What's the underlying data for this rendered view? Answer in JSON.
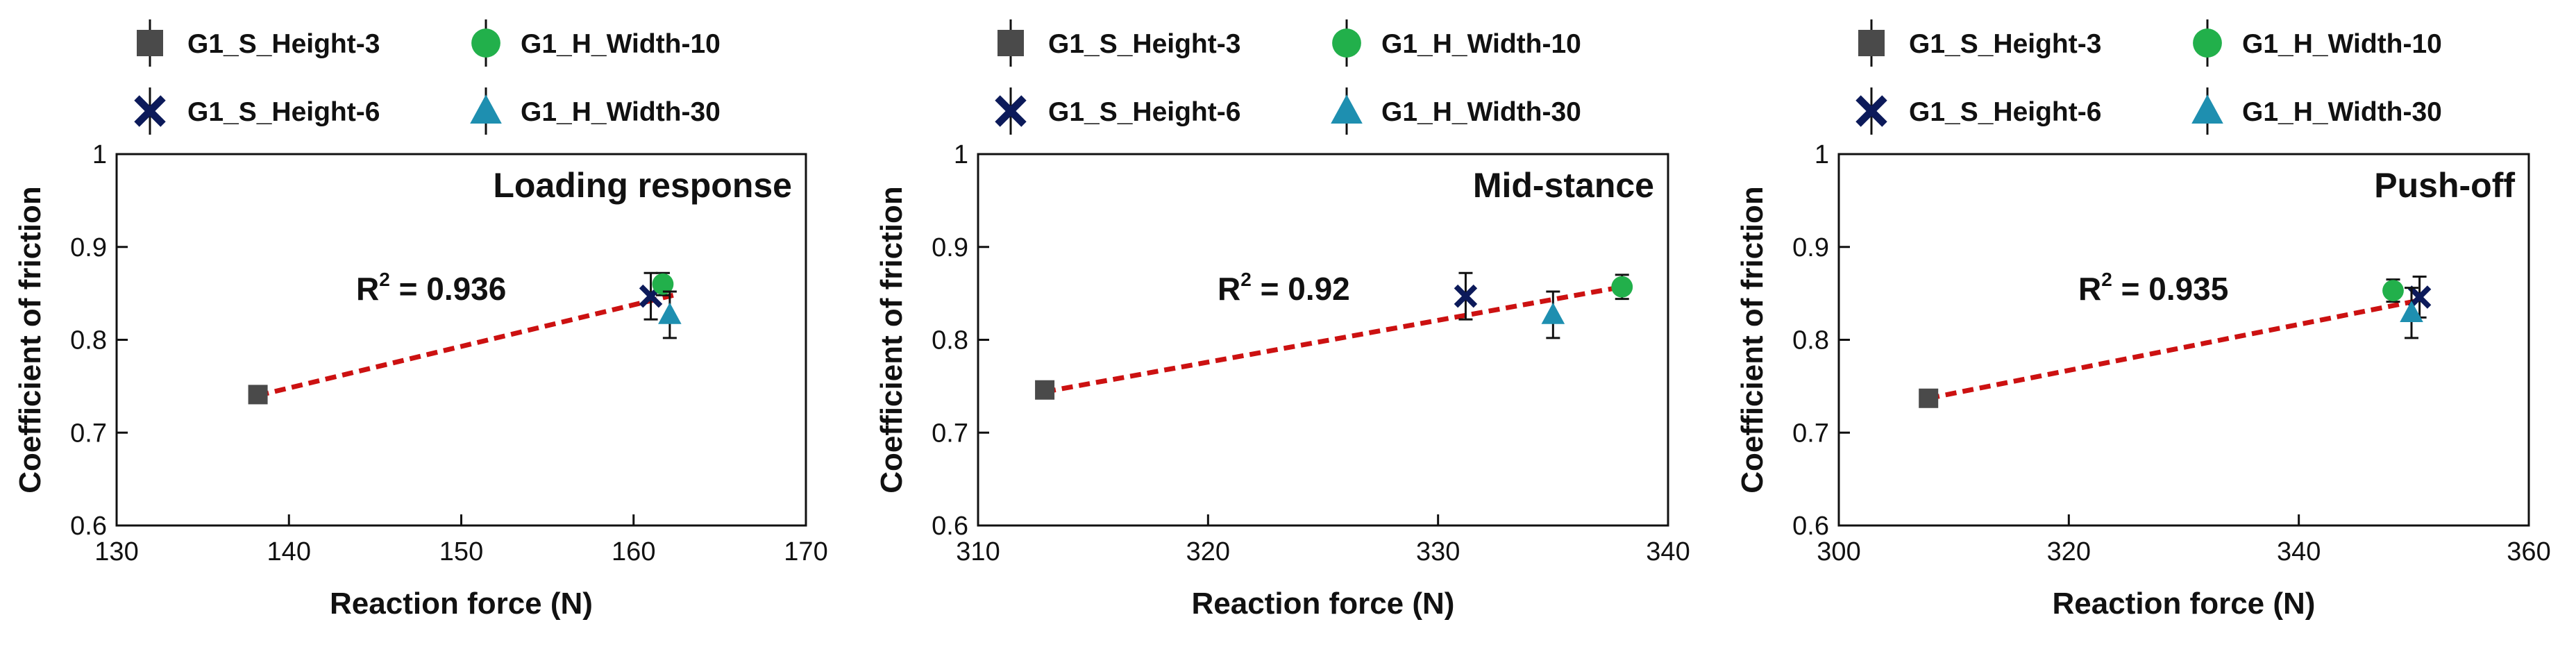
{
  "colors": {
    "G1_S_Height-3": "#4a4a4a",
    "G1_S_Height-6": "#0c1a5a",
    "G1_H_Width-10": "#22b04b",
    "G1_H_Width-30": "#1e8fb0",
    "fit_line": "#cc1111"
  },
  "legend": [
    {
      "label": "G1_S_Height-3",
      "marker": "square-icon"
    },
    {
      "label": "G1_H_Width-10",
      "marker": "circle-icon"
    },
    {
      "label": "G1_S_Height-6",
      "marker": "x-cross-icon"
    },
    {
      "label": "G1_H_Width-30",
      "marker": "triangle-icon"
    }
  ],
  "chart_data": [
    {
      "type": "scatter",
      "title": "Loading response",
      "xlabel": "Reaction force (N)",
      "ylabel": "Coefficient of friction",
      "xlim": [
        130,
        170
      ],
      "ylim": [
        0.6,
        1.0
      ],
      "xticks": [
        "130",
        "140",
        "150",
        "160",
        "170"
      ],
      "yticks": [
        "0.6",
        "0.7",
        "0.8",
        "0.9",
        "1"
      ],
      "r2_label": "R",
      "r2_sup": "2",
      "r2_value": " = 0.936",
      "series": [
        {
          "name": "G1_S_Height-3",
          "x": 138.2,
          "y": 0.741,
          "err": 0.003
        },
        {
          "name": "G1_S_Height-6",
          "x": 161.0,
          "y": 0.847,
          "err": 0.025
        },
        {
          "name": "G1_H_Width-10",
          "x": 161.7,
          "y": 0.86,
          "err": 0.012
        },
        {
          "name": "G1_H_Width-30",
          "x": 162.1,
          "y": 0.827,
          "err": 0.025
        }
      ],
      "fit": {
        "x": [
          138.2,
          162.3
        ],
        "y": [
          0.74,
          0.848
        ]
      }
    },
    {
      "type": "scatter",
      "title": "Mid-stance",
      "xlabel": "Reaction force (N)",
      "ylabel": "Coefficient of friction",
      "xlim": [
        310,
        340
      ],
      "ylim": [
        0.6,
        1.0
      ],
      "xticks": [
        "310",
        "320",
        "330",
        "340"
      ],
      "yticks": [
        "0.6",
        "0.7",
        "0.8",
        "0.9",
        "1"
      ],
      "r2_label": "R",
      "r2_sup": "2",
      "r2_value": " = 0.92",
      "series": [
        {
          "name": "G1_S_Height-3",
          "x": 312.9,
          "y": 0.746,
          "err": 0.003
        },
        {
          "name": "G1_S_Height-6",
          "x": 331.2,
          "y": 0.847,
          "err": 0.025
        },
        {
          "name": "G1_H_Width-10",
          "x": 338.0,
          "y": 0.857,
          "err": 0.013
        },
        {
          "name": "G1_H_Width-30",
          "x": 335.0,
          "y": 0.827,
          "err": 0.025
        }
      ],
      "fit": {
        "x": [
          312.9,
          338.0
        ],
        "y": [
          0.744,
          0.857
        ]
      }
    },
    {
      "type": "scatter",
      "title": "Push-off",
      "xlabel": "Reaction force (N)",
      "ylabel": "Coefficient of friction",
      "xlim": [
        300,
        360
      ],
      "ylim": [
        0.6,
        1.0
      ],
      "xticks": [
        "300",
        "320",
        "340",
        "360"
      ],
      "yticks": [
        "0.6",
        "0.7",
        "0.8",
        "0.9",
        "1"
      ],
      "r2_label": "R",
      "r2_sup": "2",
      "r2_value": " = 0.935",
      "series": [
        {
          "name": "G1_S_Height-3",
          "x": 307.8,
          "y": 0.737,
          "err": 0.003
        },
        {
          "name": "G1_S_Height-6",
          "x": 350.5,
          "y": 0.846,
          "err": 0.022
        },
        {
          "name": "G1_H_Width-10",
          "x": 348.2,
          "y": 0.853,
          "err": 0.012
        },
        {
          "name": "G1_H_Width-30",
          "x": 349.8,
          "y": 0.829,
          "err": 0.027
        }
      ],
      "fit": {
        "x": [
          307.8,
          350.7
        ],
        "y": [
          0.737,
          0.843
        ]
      }
    }
  ]
}
